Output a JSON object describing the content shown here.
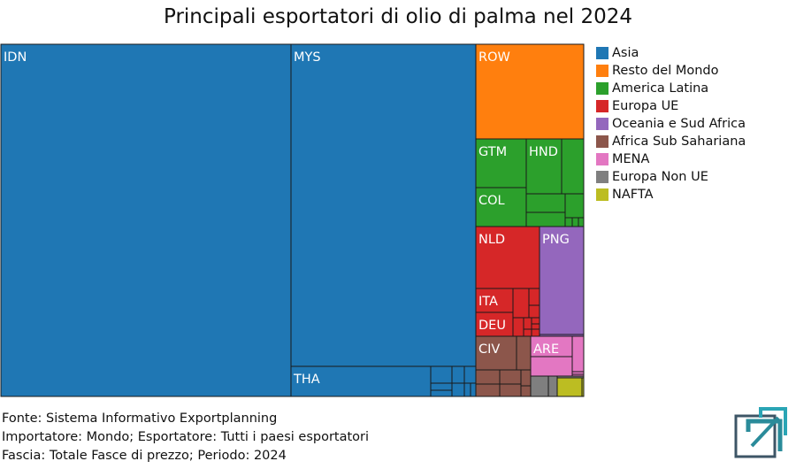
{
  "title": "Principali esportatori di olio di palma nel 2024",
  "footer": {
    "source": "Fonte: Sistema Informativo Exportplanning",
    "filter1": "Importatore: Mondo; Esportatore: Tutti i paesi esportatori",
    "filter2": "Fascia: Totale Fasce di prezzo; Periodo: 2024"
  },
  "logo_icon": "exportplanning-logo-icon",
  "chart_data": {
    "type": "treemap",
    "title": "Principali esportatori di olio di palma nel 2024",
    "legend_position": "right",
    "groups": [
      {
        "name": "Asia",
        "color": "#1f77b4"
      },
      {
        "name": "Resto del Mondo",
        "color": "#ff7f0e"
      },
      {
        "name": "America Latina",
        "color": "#2ca02c"
      },
      {
        "name": "Europa UE",
        "color": "#d62728"
      },
      {
        "name": "Oceania e Sud Africa",
        "color": "#9467bd"
      },
      {
        "name": "Africa Sub Sahariana",
        "color": "#8c564b"
      },
      {
        "name": "MENA",
        "color": "#e377c2"
      },
      {
        "name": "Europa Non UE",
        "color": "#7f7f7f"
      },
      {
        "name": "NAFTA",
        "color": "#bcbd22"
      }
    ],
    "nodes": [
      {
        "label": "IDN",
        "group": "Asia",
        "share": 0.3614
      },
      {
        "label": "MYS",
        "group": "Asia",
        "share": 0.2308
      },
      {
        "label": "THA",
        "group": "Asia",
        "share": 0.0162
      },
      {
        "label": "",
        "group": "Asia",
        "share": 0.0013
      },
      {
        "label": "",
        "group": "Asia",
        "share": 0.0007
      },
      {
        "label": "",
        "group": "Asia",
        "share": 0.0007
      },
      {
        "label": "",
        "group": "Asia",
        "share": 0.0005
      },
      {
        "label": "",
        "group": "Asia",
        "share": 0.0004
      },
      {
        "label": "",
        "group": "Asia",
        "share": 0.0003
      },
      {
        "label": "",
        "group": "Asia",
        "share": 0.0001
      },
      {
        "label": "",
        "group": "Asia",
        "share": 0.0001
      },
      {
        "label": "ROW",
        "group": "Resto del Mondo",
        "share": 0.0405
      },
      {
        "label": "GTM",
        "group": "America Latina",
        "share": 0.0214
      },
      {
        "label": "COL",
        "group": "America Latina",
        "share": 0.0174
      },
      {
        "label": "HND",
        "group": "America Latina",
        "share": 0.0094
      },
      {
        "label": "",
        "group": "America Latina",
        "share": 0.0062
      },
      {
        "label": "",
        "group": "America Latina",
        "share": 0.0034
      },
      {
        "label": "",
        "group": "America Latina",
        "share": 0.0031
      },
      {
        "label": "",
        "group": "America Latina",
        "share": 0.0015
      },
      {
        "label": "",
        "group": "America Latina",
        "share": 0.0004
      },
      {
        "label": "",
        "group": "America Latina",
        "share": 0.0002
      },
      {
        "label": "",
        "group": "America Latina",
        "share": 0.0001
      },
      {
        "label": "NLD",
        "group": "Europa UE",
        "share": 0.0205
      },
      {
        "label": "ITA",
        "group": "Europa UE",
        "share": 0.0075
      },
      {
        "label": "DEU",
        "group": "Europa UE",
        "share": 0.007
      },
      {
        "label": "",
        "group": "Europa UE",
        "share": 0.0027
      },
      {
        "label": "",
        "group": "Europa UE",
        "share": 0.0018
      },
      {
        "label": "",
        "group": "Europa UE",
        "share": 0.0011
      },
      {
        "label": "",
        "group": "Europa UE",
        "share": 0.0008
      },
      {
        "label": "",
        "group": "Europa UE",
        "share": 0.0006
      },
      {
        "label": "",
        "group": "Europa UE",
        "share": 0.0004
      },
      {
        "label": "",
        "group": "Europa UE",
        "share": 0.0002
      },
      {
        "label": "",
        "group": "Europa UE",
        "share": 0.0001
      },
      {
        "label": "",
        "group": "Europa UE",
        "share": 0.0001
      },
      {
        "label": "PNG",
        "group": "Oceania e Sud Africa",
        "share": 0.0186
      },
      {
        "label": "",
        "group": "Oceania e Sud Africa",
        "share": 0.0002
      },
      {
        "label": "CIV",
        "group": "Africa Sub Sahariana",
        "share": 0.0088
      },
      {
        "label": "",
        "group": "Africa Sub Sahariana",
        "share": 0.003
      },
      {
        "label": "",
        "group": "Africa Sub Sahariana",
        "share": 0.0042
      },
      {
        "label": "",
        "group": "Africa Sub Sahariana",
        "share": 0.0035
      },
      {
        "label": "",
        "group": "Africa Sub Sahariana",
        "share": 0.0018
      },
      {
        "label": "",
        "group": "Africa Sub Sahariana",
        "share": 0.0009
      },
      {
        "label": "",
        "group": "Africa Sub Sahariana",
        "share": 0.0006
      },
      {
        "label": "",
        "group": "Africa Sub Sahariana",
        "share": 0.0005
      },
      {
        "label": "ARE",
        "group": "MENA",
        "share": 0.0046
      },
      {
        "label": "",
        "group": "MENA",
        "share": 0.0043
      },
      {
        "label": "",
        "group": "MENA",
        "share": 0.0034
      },
      {
        "label": "",
        "group": "MENA",
        "share": 0.0006
      },
      {
        "label": "",
        "group": "MENA",
        "share": 0.0004
      },
      {
        "label": "",
        "group": "Europa Non UE",
        "share": 0.002
      },
      {
        "label": "",
        "group": "Europa Non UE",
        "share": 0.0008
      },
      {
        "label": "",
        "group": "Europa Non UE",
        "share": 0.0008
      },
      {
        "label": "",
        "group": "NAFTA",
        "share": 0.0024
      },
      {
        "label": "",
        "group": "NAFTA",
        "share": 0.0003
      }
    ]
  }
}
